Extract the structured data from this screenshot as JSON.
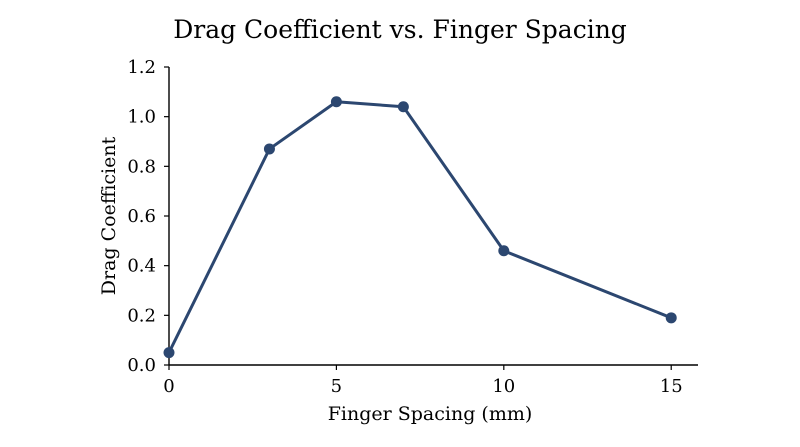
{
  "chart_data": {
    "type": "line",
    "title": "Drag Coefficient vs. Finger Spacing",
    "xlabel": "Finger Spacing (mm)",
    "ylabel": "Drag Coefficient",
    "xlim": [
      0,
      15.8
    ],
    "ylim": [
      0,
      1.2
    ],
    "xticks": [
      0,
      5,
      10,
      15
    ],
    "yticks": [
      0.0,
      0.2,
      0.4,
      0.6,
      0.8,
      1.0,
      1.2
    ],
    "xtick_labels": [
      "0",
      "5",
      "10",
      "15"
    ],
    "ytick_labels": [
      "0.0",
      "0.2",
      "0.4",
      "0.6",
      "0.8",
      "1.0",
      "1.2"
    ],
    "grid": false,
    "series": [
      {
        "x": [
          0,
          3,
          5,
          7,
          10,
          15
        ],
        "y": [
          0.05,
          0.87,
          1.06,
          1.04,
          0.46,
          0.19
        ]
      }
    ],
    "line_color": "#2c4770",
    "marker_color": "#2c4770"
  }
}
